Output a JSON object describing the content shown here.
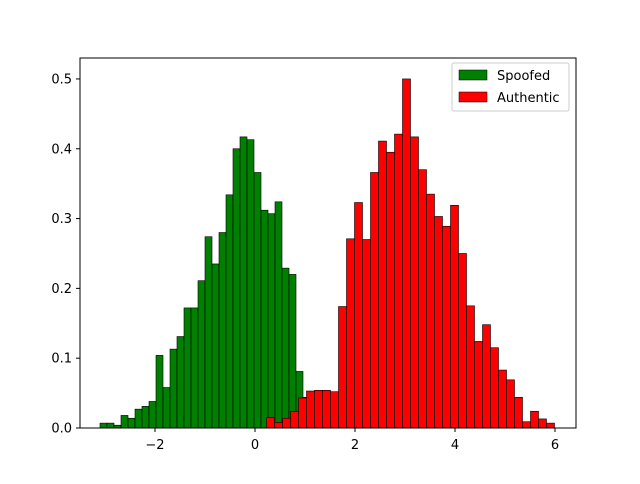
{
  "chart_data": {
    "type": "bar",
    "title": "",
    "xlabel": "",
    "ylabel": "",
    "xlim": [
      -3.5,
      6.42
    ],
    "ylim": [
      0,
      0.53
    ],
    "x_ticks": [
      -2,
      0,
      2,
      4,
      6
    ],
    "x_tick_labels": [
      "−2",
      "0",
      "2",
      "4",
      "6"
    ],
    "y_ticks": [
      0.0,
      0.1,
      0.2,
      0.3,
      0.4,
      0.5
    ],
    "y_tick_labels": [
      "0.0",
      "0.1",
      "0.2",
      "0.3",
      "0.4",
      "0.5"
    ],
    "grid": false,
    "legend_position": "top-right",
    "series": [
      {
        "name": "Spoofed",
        "color": "#008000",
        "bin_edges": [
          -3.1,
          -2.96,
          -2.82,
          -2.68,
          -2.54,
          -2.4,
          -2.26,
          -2.12,
          -1.98,
          -1.84,
          -1.7,
          -1.56,
          -1.42,
          -1.28,
          -1.14,
          -1.0,
          -0.86,
          -0.72,
          -0.58,
          -0.44,
          -0.3,
          -0.16,
          -0.02,
          0.12,
          0.26,
          0.4,
          0.54,
          0.68,
          0.82,
          0.96,
          1.1,
          1.24,
          1.38,
          1.52,
          1.66,
          1.8
        ],
        "values": [
          0.007,
          0.007,
          0.004,
          0.018,
          0.014,
          0.027,
          0.031,
          0.038,
          0.104,
          0.058,
          0.113,
          0.131,
          0.172,
          0.172,
          0.211,
          0.274,
          0.235,
          0.28,
          0.334,
          0.4,
          0.417,
          0.413,
          0.366,
          0.312,
          0.307,
          0.324,
          0.229,
          0.22,
          0.081,
          0.044,
          0.02,
          0.038,
          0.019,
          0.004,
          0.007
        ]
      },
      {
        "name": "Authentic",
        "color": "#ff0000",
        "bin_edges": [
          0.23,
          0.39,
          0.55,
          0.71,
          0.87,
          1.03,
          1.19,
          1.35,
          1.51,
          1.67,
          1.83,
          1.99,
          2.15,
          2.31,
          2.47,
          2.63,
          2.79,
          2.95,
          3.11,
          3.27,
          3.43,
          3.59,
          3.75,
          3.91,
          4.07,
          4.23,
          4.39,
          4.55,
          4.71,
          4.87,
          5.03,
          5.19,
          5.35,
          5.51,
          5.67,
          5.83,
          5.99
        ],
        "values": [
          0.015,
          0.008,
          0.014,
          0.024,
          0.043,
          0.053,
          0.054,
          0.054,
          0.052,
          0.174,
          0.271,
          0.323,
          0.27,
          0.366,
          0.411,
          0.395,
          0.421,
          0.5,
          0.417,
          0.37,
          0.335,
          0.303,
          0.289,
          0.319,
          0.25,
          0.175,
          0.124,
          0.148,
          0.115,
          0.083,
          0.069,
          0.044,
          0.009,
          0.024,
          0.013,
          0.007
        ]
      }
    ]
  }
}
